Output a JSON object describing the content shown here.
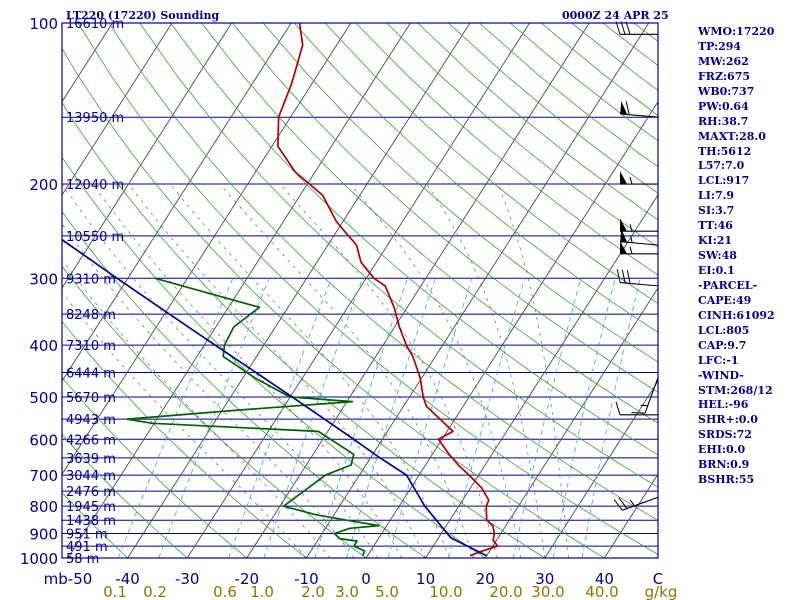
{
  "header": {
    "station": "LT220 (17220) Sounding",
    "time": "0000Z 24 APR 25"
  },
  "stats": [
    "WMO:17220",
    "TP:294",
    "MW:262",
    "FRZ:675",
    "WB0:737",
    "PW:0.64",
    "RH:38.7",
    "MAXT:28.0",
    "TH:5612",
    "L57:7.0",
    "LCL:917",
    "LI:7.9",
    "SI:3.7",
    "TT:46",
    "KI:21",
    "SW:48",
    "EI:0.1",
    "-PARCEL-",
    "CAPE:49",
    "CINH:61092",
    "LCL:805",
    "CAP:9.7",
    "LFC:-1",
    "-WIND-",
    "STM:268/12",
    "HEL:-96",
    "SHR+:0.0",
    "SRDS:72",
    "EHI:0.0",
    "BRN:0.9",
    "BSHR:55"
  ],
  "chart_data": {
    "type": "line",
    "x_unit": "C",
    "y_unit": "mb",
    "xlim": [
      -50,
      50
    ],
    "ylim": [
      1000,
      100
    ],
    "pressure_ticks": [
      100,
      200,
      300,
      400,
      500,
      600,
      700,
      800,
      900,
      1000
    ],
    "temperature_ticks": [
      -50,
      -40,
      -30,
      -20,
      -10,
      0,
      10,
      20,
      30,
      40
    ],
    "temperature_tick_labels": [
      "mb-50",
      "-40",
      "-30",
      "-20",
      "-10",
      "0",
      "10",
      "20",
      "30",
      "40",
      "C"
    ],
    "height_labels": [
      {
        "p": 100,
        "label": "16610 m"
      },
      {
        "p": 150,
        "label": "13950 m"
      },
      {
        "p": 200,
        "label": "12040 m"
      },
      {
        "p": 250,
        "label": "10550 m"
      },
      {
        "p": 300,
        "label": "9310 m"
      },
      {
        "p": 350,
        "label": "8248 m"
      },
      {
        "p": 400,
        "label": "7310 m"
      },
      {
        "p": 450,
        "label": "6444 m"
      },
      {
        "p": 500,
        "label": "5670 m"
      },
      {
        "p": 550,
        "label": "4943 m"
      },
      {
        "p": 600,
        "label": "4266 m"
      },
      {
        "p": 650,
        "label": "3639 m"
      },
      {
        "p": 700,
        "label": "3044 m"
      },
      {
        "p": 750,
        "label": "2476 m"
      },
      {
        "p": 800,
        "label": "1945 m"
      },
      {
        "p": 850,
        "label": "1438 m"
      },
      {
        "p": 900,
        "label": "951 m"
      },
      {
        "p": 950,
        "label": "491 m"
      },
      {
        "p": 1000,
        "label": "58 m"
      }
    ],
    "mixing_ratio_labels": [
      "0.1",
      "0.2",
      "0.6",
      "1.0",
      "2.0",
      "3.0",
      "5.0",
      "10.0",
      "20.0",
      "30.0",
      "40.0",
      "g/kg"
    ],
    "series": [
      {
        "name": "temperature",
        "color": "#b00000",
        "points": [
          [
            990,
            17.2
          ],
          [
            970,
            18.8
          ],
          [
            950,
            20.8
          ],
          [
            925,
            19.4
          ],
          [
            900,
            18.9
          ],
          [
            870,
            17.8
          ],
          [
            850,
            16.2
          ],
          [
            800,
            14.6
          ],
          [
            780,
            14.4
          ],
          [
            740,
            11.9
          ],
          [
            700,
            8.4
          ],
          [
            670,
            5.5
          ],
          [
            640,
            2.8
          ],
          [
            600,
            -0.6
          ],
          [
            580,
            1.0
          ],
          [
            550,
            -2.5
          ],
          [
            520,
            -6.2
          ],
          [
            500,
            -7.7
          ],
          [
            460,
            -10.3
          ],
          [
            420,
            -13.8
          ],
          [
            400,
            -16.1
          ],
          [
            370,
            -19.2
          ],
          [
            340,
            -22.2
          ],
          [
            310,
            -26.0
          ],
          [
            300,
            -28.7
          ],
          [
            280,
            -32.6
          ],
          [
            260,
            -35.2
          ],
          [
            245,
            -38.7
          ],
          [
            235,
            -41.1
          ],
          [
            210,
            -46.2
          ],
          [
            200,
            -49.6
          ],
          [
            190,
            -53.3
          ],
          [
            170,
            -59.0
          ],
          [
            150,
            -62.0
          ],
          [
            130,
            -63.4
          ],
          [
            110,
            -65.7
          ],
          [
            100,
            -68.6
          ]
        ]
      },
      {
        "name": "dewpoint",
        "color": "#006000",
        "points": [
          [
            990,
            -0.8
          ],
          [
            970,
            -1.0
          ],
          [
            950,
            -3.3
          ],
          [
            930,
            -3.3
          ],
          [
            920,
            -6.5
          ],
          [
            900,
            -7.9
          ],
          [
            880,
            -5.9
          ],
          [
            870,
            -1.3
          ],
          [
            850,
            -7.3
          ],
          [
            830,
            -13.1
          ],
          [
            800,
            -19.4
          ],
          [
            700,
            -15.7
          ],
          [
            670,
            -12.5
          ],
          [
            640,
            -13.2
          ],
          [
            580,
            -21.6
          ],
          [
            560,
            -50.3
          ],
          [
            550,
            -55.0
          ],
          [
            530,
            -38.1
          ],
          [
            510,
            -19.1
          ],
          [
            500,
            -30.1
          ],
          [
            460,
            -38.1
          ],
          [
            420,
            -45.6
          ],
          [
            400,
            -46.6
          ],
          [
            370,
            -47.0
          ],
          [
            340,
            -44.8
          ],
          [
            300,
            -65.4
          ]
        ]
      },
      {
        "name": "parcel",
        "color": "#00008b",
        "points": [
          [
            990,
            20.0
          ],
          [
            917,
            12.1
          ],
          [
            800,
            4.3
          ],
          [
            700,
            -2.1
          ],
          [
            650,
            -8.4
          ],
          [
            600,
            -14.8
          ],
          [
            550,
            -21.9
          ],
          [
            500,
            -29.7
          ],
          [
            450,
            -38.4
          ],
          [
            400,
            -48.2
          ],
          [
            350,
            -59.2
          ],
          [
            300,
            -71.8
          ],
          [
            250,
            -86.5
          ],
          [
            200,
            -104.0
          ],
          [
            150,
            -126.6
          ],
          [
            105,
            -152.1
          ]
        ]
      }
    ],
    "wind_barbs": [
      {
        "p": 105,
        "dir": 270,
        "spd": 30
      },
      {
        "p": 150,
        "dir": 275,
        "spd": 60
      },
      {
        "p": 200,
        "dir": 270,
        "spd": 55
      },
      {
        "p": 245,
        "dir": 270,
        "spd": 55
      },
      {
        "p": 260,
        "dir": 275,
        "spd": 55
      },
      {
        "p": 270,
        "dir": 270,
        "spd": 55
      },
      {
        "p": 310,
        "dir": 275,
        "spd": 30
      },
      {
        "p": 460,
        "dir": 200,
        "spd": 15
      },
      {
        "p": 540,
        "dir": 270,
        "spd": 10
      },
      {
        "p": 770,
        "dir": 250,
        "spd": 25
      }
    ]
  }
}
